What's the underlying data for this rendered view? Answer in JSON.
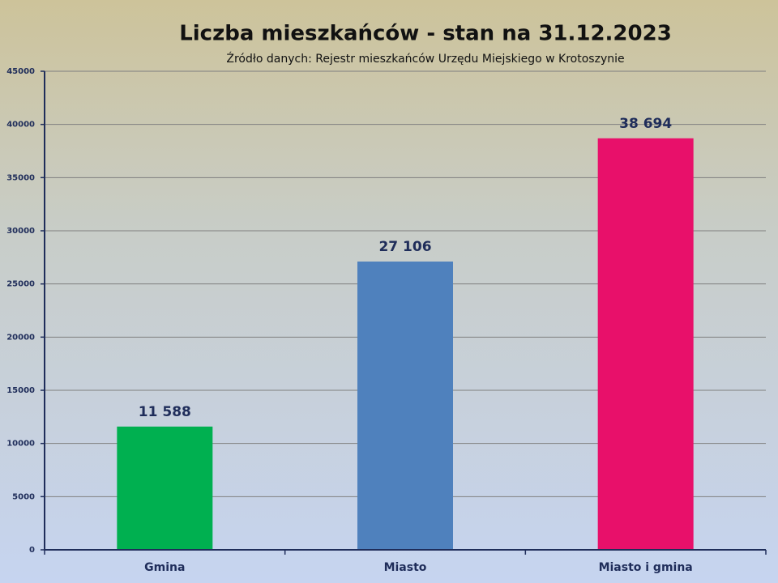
{
  "chart_data": {
    "type": "bar",
    "title": "Liczba mieszkańców - stan na 31.12.2023",
    "subtitle": "Źródło danych: Rejestr mieszkańców Urzędu Miejskiego w Krotoszynie",
    "categories": [
      "Gmina",
      "Miasto",
      "Miasto i gmina"
    ],
    "values": [
      11588,
      27106,
      38694
    ],
    "value_labels": [
      "11 588",
      "27 106",
      "38 694"
    ],
    "colors": [
      "#00b050",
      "#4f81bd",
      "#e8106a"
    ],
    "ylim": [
      0,
      45000
    ],
    "yticks": [
      0,
      5000,
      10000,
      15000,
      20000,
      25000,
      30000,
      35000,
      40000,
      45000
    ],
    "grid": true
  }
}
